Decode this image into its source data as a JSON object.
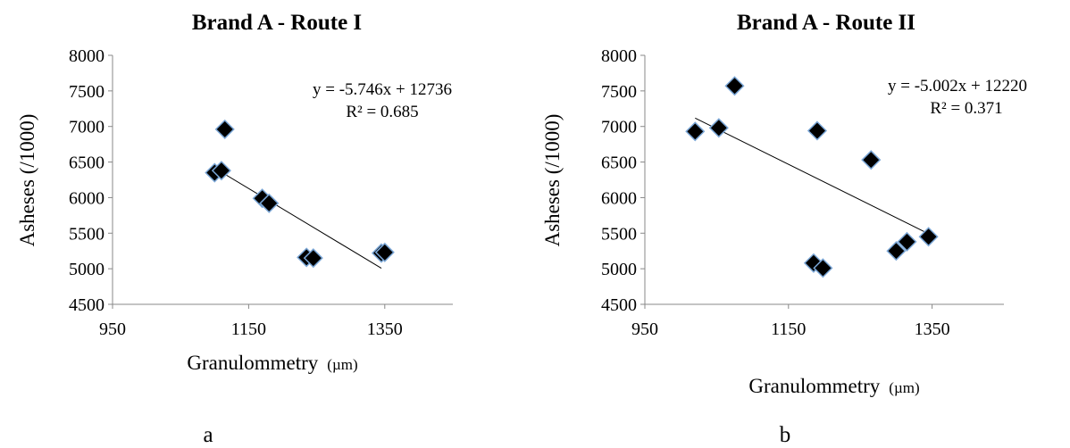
{
  "chart_data": [
    {
      "type": "scatter",
      "title": "Brand A - Route I",
      "xlabel": "Granulommetry",
      "xlabel_unit": "(µm)",
      "ylabel": "Asheses (/1000)",
      "xlim": [
        950,
        1450
      ],
      "ylim": [
        4500,
        8000
      ],
      "x_ticks": [
        "950",
        "1150",
        "1350"
      ],
      "y_ticks": [
        "4500",
        "5000",
        "5500",
        "6000",
        "6500",
        "7000",
        "7500",
        "8000"
      ],
      "points": [
        {
          "x": 1100,
          "y": 6350
        },
        {
          "x": 1110,
          "y": 6380
        },
        {
          "x": 1115,
          "y": 6960
        },
        {
          "x": 1170,
          "y": 5990
        },
        {
          "x": 1180,
          "y": 5920
        },
        {
          "x": 1235,
          "y": 5160
        },
        {
          "x": 1245,
          "y": 5150
        },
        {
          "x": 1345,
          "y": 5220
        },
        {
          "x": 1350,
          "y": 5230
        }
      ],
      "trendline": {
        "slope": -5.746,
        "intercept": 12736,
        "x_range": [
          1100,
          1345
        ]
      },
      "equation": "y = -5.746x + 12736",
      "r2": "R² = 0.685",
      "caption": "a",
      "grid": false,
      "legend": "none"
    },
    {
      "type": "scatter",
      "title": "Brand A - Route II",
      "xlabel": "Granulommetry",
      "xlabel_unit": "(µm)",
      "ylabel": "Asheses (/1000)",
      "xlim": [
        950,
        1450
      ],
      "ylim": [
        4500,
        8000
      ],
      "x_ticks": [
        "950",
        "1150",
        "1350"
      ],
      "y_ticks": [
        "4500",
        "5000",
        "5500",
        "6000",
        "6500",
        "7000",
        "7500",
        "8000"
      ],
      "points": [
        {
          "x": 1020,
          "y": 6930
        },
        {
          "x": 1053,
          "y": 6980
        },
        {
          "x": 1075,
          "y": 7570
        },
        {
          "x": 1185,
          "y": 5080
        },
        {
          "x": 1190,
          "y": 6940
        },
        {
          "x": 1198,
          "y": 5010
        },
        {
          "x": 1265,
          "y": 6530
        },
        {
          "x": 1300,
          "y": 5250
        },
        {
          "x": 1315,
          "y": 5380
        },
        {
          "x": 1345,
          "y": 5450
        }
      ],
      "trendline": {
        "slope": -5.002,
        "intercept": 12220,
        "x_range": [
          1020,
          1345
        ]
      },
      "equation": "y = -5.002x + 12220",
      "r2": "R² = 0.371",
      "caption": "b",
      "grid": false,
      "legend": "none"
    }
  ]
}
